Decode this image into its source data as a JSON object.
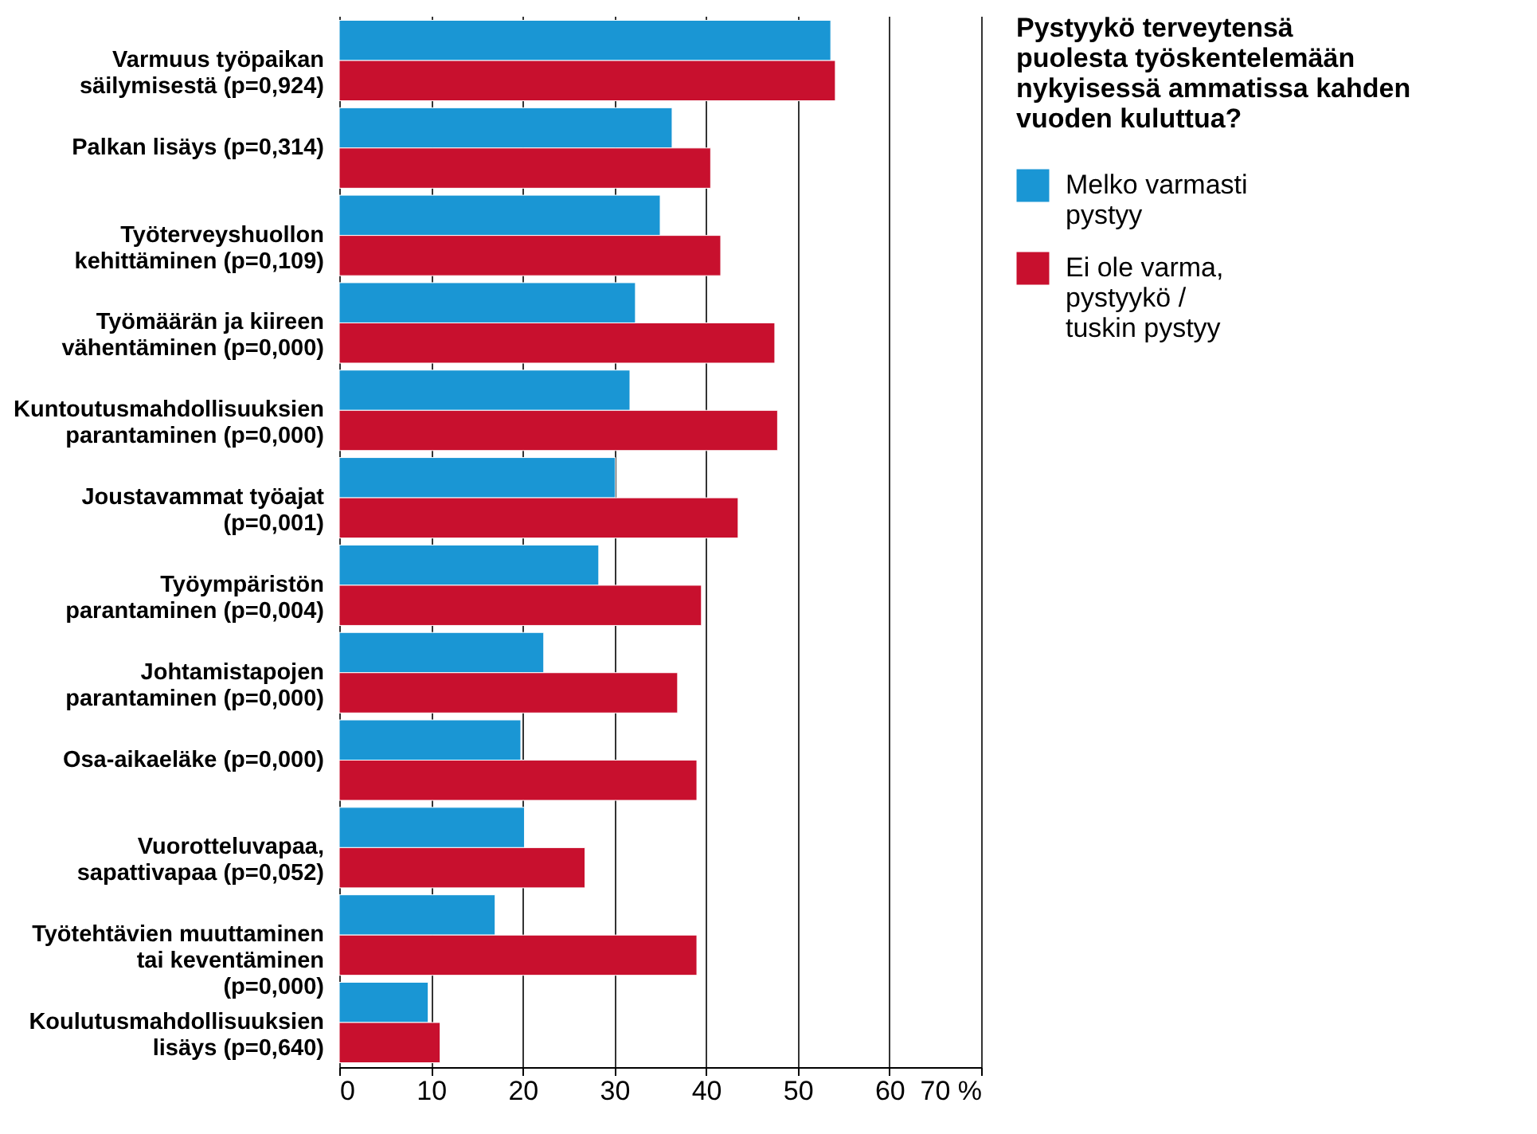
{
  "chart_data": {
    "type": "bar",
    "orientation": "horizontal",
    "legend_title": "Pystyykö terveytensä puolesta työskentelemään nykyisessä ammatissa kahden vuoden kuluttua?",
    "categories": [
      "Varmuus työpaikan säilymisestä (p=0,924)",
      "Palkan lisäys (p=0,314)",
      "Työterveyshuollon kehittäminen (p=0,109)",
      "Työmäärän ja kiireen vähentäminen (p=0,000)",
      "Kuntoutusmahdollisuuksien parantaminen (p=0,000)",
      "Joustavammat työajat (p=0,001)",
      "Työympäristön parantaminen (p=0,004)",
      "Johtamistapojen parantaminen (p=0,000)",
      "Osa-aikaeläke (p=0,000)",
      "Vuorotteluvapaa, sapattivapaa (p=0,052)",
      "Työtehtävien muuttaminen tai keventäminen (p=0,000)",
      "Koulutusmahdollisuuksien lisäys (p=0,640)"
    ],
    "series": [
      {
        "name": "Melko varmasti pystyy",
        "color": "#1a96d4",
        "values": [
          53.6,
          36.3,
          35.0,
          32.3,
          31.7,
          30.1,
          28.3,
          22.3,
          19.8,
          20.2,
          17.0,
          9.7
        ]
      },
      {
        "name": "Ei ole varma, pystyykö / tuskin pystyy",
        "color": "#c8102e",
        "values": [
          54.1,
          40.5,
          41.6,
          47.5,
          47.8,
          43.5,
          39.5,
          36.9,
          39.0,
          26.8,
          39.0,
          11.0
        ]
      }
    ],
    "xlim": [
      0,
      70
    ],
    "xticks": [
      0,
      10,
      20,
      30,
      40,
      50,
      60,
      {
        "value": 70,
        "label": "70 %"
      }
    ],
    "grid": "x",
    "legend": "right"
  }
}
